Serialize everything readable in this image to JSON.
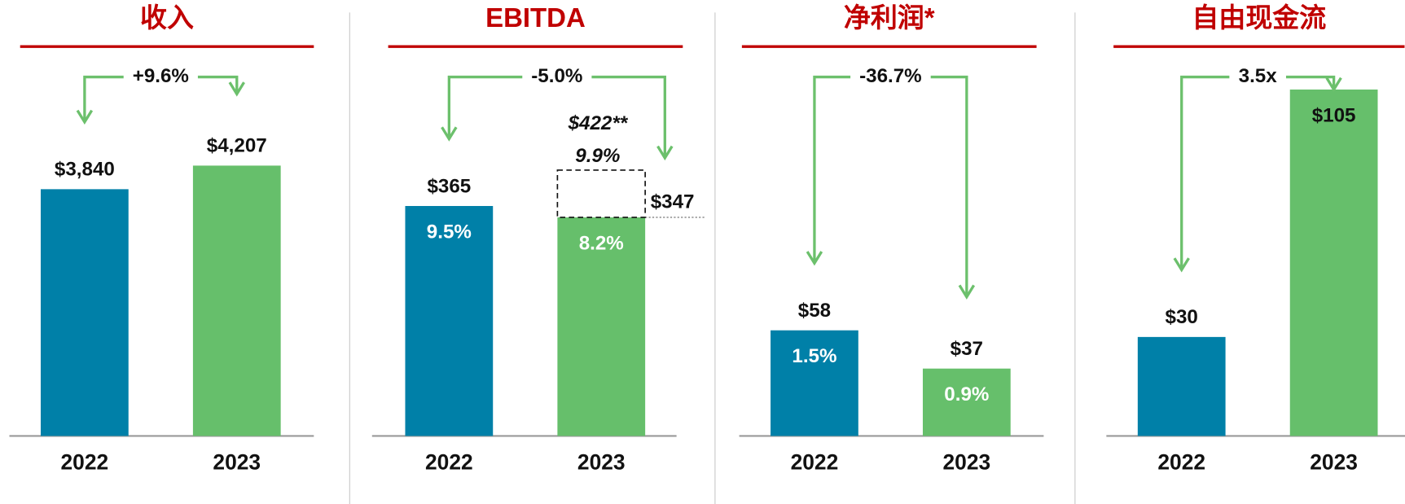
{
  "chart_data": [
    {
      "type": "bar",
      "title": "收入",
      "categories": [
        "2022",
        "2023"
      ],
      "values": [
        3840,
        4207
      ],
      "value_labels": [
        "$3,840",
        "$4,207"
      ],
      "colors": [
        "#0080a8",
        "#66bf6b"
      ],
      "change_label": "+9.6%"
    },
    {
      "type": "bar",
      "title": "EBITDA",
      "categories": [
        "2022",
        "2023"
      ],
      "values": [
        365,
        347
      ],
      "value_labels": [
        "$365",
        "$347"
      ],
      "margins": [
        9.5,
        8.2
      ],
      "margin_labels": [
        "9.5%",
        "8.2%"
      ],
      "colors": [
        "#0080a8",
        "#66bf6b"
      ],
      "change_label": "-5.0%",
      "adjusted": {
        "value": 422,
        "value_label": "$422**",
        "margin": 9.9,
        "margin_label": "9.9%"
      }
    },
    {
      "type": "bar",
      "title": "净利润*",
      "categories": [
        "2022",
        "2023"
      ],
      "values": [
        58,
        37
      ],
      "value_labels": [
        "$58",
        "$37"
      ],
      "margins": [
        1.5,
        0.9
      ],
      "margin_labels": [
        "1.5%",
        "0.9%"
      ],
      "colors": [
        "#0080a8",
        "#66bf6b"
      ],
      "change_label": "-36.7%"
    },
    {
      "type": "bar",
      "title": "自由现金流",
      "categories": [
        "2022",
        "2023"
      ],
      "values": [
        30,
        105
      ],
      "value_labels": [
        "$30",
        "$105"
      ],
      "colors": [
        "#0080a8",
        "#66bf6b"
      ],
      "change_label": "3.5x"
    }
  ]
}
